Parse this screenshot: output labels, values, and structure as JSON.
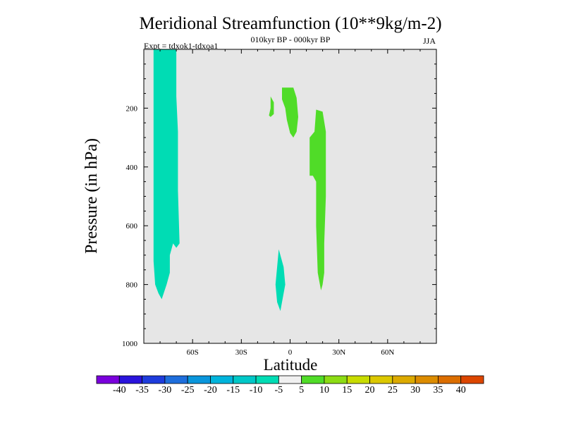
{
  "chart_data": {
    "type": "heatmap",
    "title": "Meridional Streamfunction (10**9kg/m-2)",
    "subtitle": "010kyr BP - 000kyr BP",
    "left_label": "Expt = tdxok1-tdxoa1",
    "season": "JJA",
    "xlabel": "Latitude",
    "ylabel": "Pressure (in hPa)",
    "xlim": [
      -90,
      90
    ],
    "ylim": [
      1000,
      0
    ],
    "x_ticks": [
      {
        "value": -60,
        "label": "60S"
      },
      {
        "value": -30,
        "label": "30S"
      },
      {
        "value": 0,
        "label": "0"
      },
      {
        "value": 30,
        "label": "30N"
      },
      {
        "value": 60,
        "label": "60N"
      }
    ],
    "y_ticks": [
      {
        "value": 200,
        "label": "200"
      },
      {
        "value": 400,
        "label": "400"
      },
      {
        "value": 600,
        "label": "600"
      },
      {
        "value": 800,
        "label": "800"
      },
      {
        "value": 1000,
        "label": "1000"
      }
    ],
    "background_color": "#e6e6e6",
    "regions": [
      {
        "name": "negative-cell-southern-hemisphere",
        "range": "-10 to -5",
        "color": "#00dcb4",
        "points": [
          [
            -84,
            0
          ],
          [
            -70,
            0
          ],
          [
            -70,
            160
          ],
          [
            -69,
            280
          ],
          [
            -69,
            480
          ],
          [
            -68,
            660
          ],
          [
            -70,
            675
          ],
          [
            -72,
            660
          ],
          [
            -74,
            700
          ],
          [
            -74,
            760
          ],
          [
            -76,
            800
          ],
          [
            -79,
            850
          ],
          [
            -81,
            830
          ],
          [
            -83,
            800
          ],
          [
            -84,
            720
          ],
          [
            -84,
            560
          ],
          [
            -84,
            300
          ]
        ]
      },
      {
        "name": "negative-cell-equator",
        "range": "-10 to -5",
        "color": "#00dcb4",
        "points": [
          [
            -7,
            680
          ],
          [
            -4,
            740
          ],
          [
            -3,
            800
          ],
          [
            -5,
            860
          ],
          [
            -6,
            890
          ],
          [
            -8,
            860
          ],
          [
            -9,
            800
          ],
          [
            -8,
            740
          ]
        ]
      },
      {
        "name": "positive-cell-upper-left",
        "range": "5 to 10",
        "color": "#50dc28",
        "points": [
          [
            -12,
            160
          ],
          [
            -10,
            180
          ],
          [
            -10,
            220
          ],
          [
            -12,
            230
          ],
          [
            -13,
            225
          ],
          [
            -12,
            200
          ]
        ]
      },
      {
        "name": "positive-cell-upper",
        "range": "5 to 10",
        "color": "#50dc28",
        "points": [
          [
            -5,
            130
          ],
          [
            2,
            130
          ],
          [
            4,
            165
          ],
          [
            5,
            230
          ],
          [
            4,
            280
          ],
          [
            2,
            300
          ],
          [
            0,
            285
          ],
          [
            -2,
            240
          ],
          [
            -3,
            200
          ],
          [
            -5,
            170
          ]
        ]
      },
      {
        "name": "positive-cell-northern-hemisphere",
        "range": "5 to 10",
        "color": "#50dc28",
        "points": [
          [
            16,
            205
          ],
          [
            20,
            212
          ],
          [
            22,
            280
          ],
          [
            22,
            500
          ],
          [
            21,
            660
          ],
          [
            21,
            760
          ],
          [
            20,
            800
          ],
          [
            19,
            820
          ],
          [
            17,
            760
          ],
          [
            16,
            600
          ],
          [
            16,
            450
          ],
          [
            14,
            430
          ],
          [
            12,
            430
          ],
          [
            12,
            300
          ],
          [
            15,
            280
          ]
        ]
      }
    ],
    "colorbar": {
      "colors": [
        "#7a00dc",
        "#2a14dc",
        "#1e3cdc",
        "#1e6edc",
        "#0a96dc",
        "#00b4dc",
        "#00c8c8",
        "#00dcb4",
        "#f0f0f0",
        "#50dc28",
        "#8cdc14",
        "#c8dc00",
        "#dcc800",
        "#dcaa00",
        "#dc8c00",
        "#dc6e00",
        "#dc4600"
      ],
      "labels": [
        "-40",
        "-35",
        "-30",
        "-25",
        "-20",
        "-15",
        "-10",
        "-5",
        "5",
        "10",
        "15",
        "20",
        "25",
        "30",
        "35",
        "40"
      ]
    }
  }
}
